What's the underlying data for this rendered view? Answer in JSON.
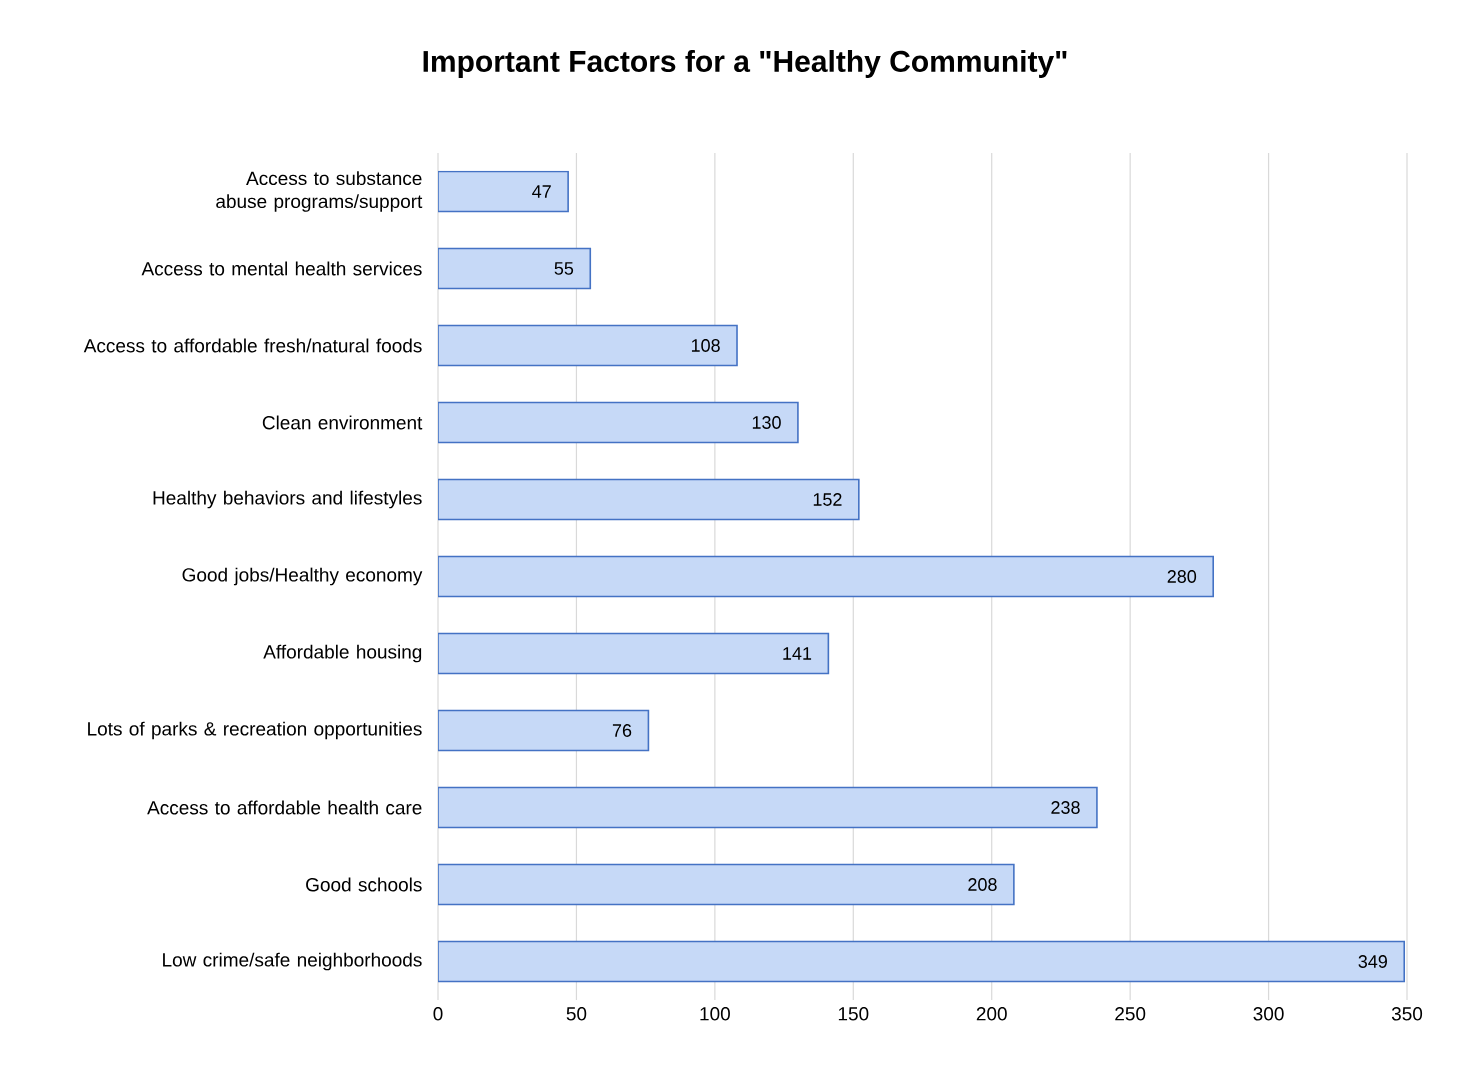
{
  "chart_data": {
    "type": "bar",
    "orientation": "horizontal",
    "title": "Important Factors for a \"Healthy Community\"",
    "categories": [
      "Access to substance abuse programs/support",
      "Access to mental health services",
      "Access to affordable fresh/natural foods",
      "Clean environment",
      "Healthy behaviors and lifestyles",
      "Good jobs/Healthy economy",
      "Affordable housing",
      "Lots of parks & recreation opportunities",
      "Access to affordable health care",
      "Good schools",
      "Low crime/safe neighborhoods"
    ],
    "values": [
      47,
      55,
      108,
      130,
      152,
      280,
      141,
      76,
      238,
      208,
      349
    ],
    "color": "#c6d9f7",
    "xlim": [
      0,
      350
    ],
    "xticks": [
      0,
      50,
      100,
      150,
      200,
      250,
      300,
      350
    ],
    "grid": "x",
    "data_labels": true
  }
}
